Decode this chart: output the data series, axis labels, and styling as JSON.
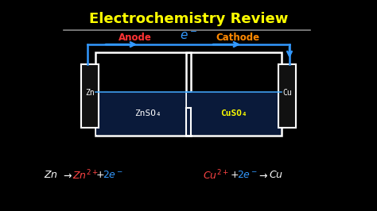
{
  "bg_color": "#000000",
  "title": "Electrochemistry Review",
  "title_color": "#ffff00",
  "title_fontsize": 13,
  "wire_color": "#3399ff",
  "electrode_color": "#ffffff",
  "solution_color": "#0a1a3a",
  "solution_line_color": "#44aaff",
  "anode_label": "Anode",
  "cathode_label": "Cathode",
  "anode_color": "#ff3333",
  "cathode_color": "#ff8800",
  "zn_label": "Zn",
  "cu_label": "Cu",
  "znso4_label": "ZnSO₄",
  "cuso4_label": "CuSO₄",
  "cuso4_color": "#ffff00",
  "znso4_color": "#ffffff",
  "underline_color": "#888888",
  "eq_color": "#ffffff",
  "eq_color2": "#3399ff",
  "eq_color_red": "#ff4444"
}
